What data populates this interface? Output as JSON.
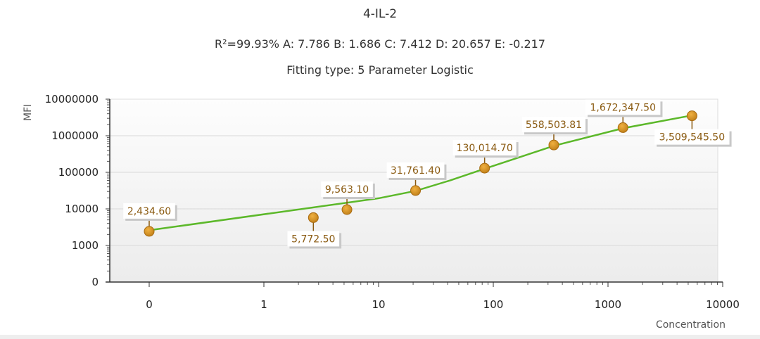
{
  "chart_data": {
    "type": "scatter",
    "title": "4-IL-2",
    "subtitle": "R²=99.93% A: 7.786 B: 1.686 C: 7.412 D: 20.657 E: -0.217",
    "fitting": "Fitting type: 5 Parameter Logistic",
    "xlabel": "Concentration",
    "ylabel": "MFI",
    "xscale": "log",
    "yscale": "log",
    "x_ticks": [
      "0",
      "1",
      "10",
      "100",
      "1000",
      "10000"
    ],
    "y_ticks": [
      "10000000",
      "1000000",
      "100000",
      "10000",
      "1000",
      "0"
    ],
    "grid": true,
    "points": [
      {
        "x": 0,
        "y": 2434.6,
        "label": "2,434.60",
        "placement": "above"
      },
      {
        "x": 2.7,
        "y": 5772.5,
        "label": "5,772.50",
        "placement": "below"
      },
      {
        "x": 5.3,
        "y": 9563.1,
        "label": "9,563.10",
        "placement": "above"
      },
      {
        "x": 21,
        "y": 31761.4,
        "label": "31,761.40",
        "placement": "above"
      },
      {
        "x": 84,
        "y": 130014.7,
        "label": "130,014.70",
        "placement": "above"
      },
      {
        "x": 337,
        "y": 558503.81,
        "label": "558,503.81",
        "placement": "above"
      },
      {
        "x": 1350,
        "y": 1672347.5,
        "label": "1,672,347.50",
        "placement": "above"
      },
      {
        "x": 5400,
        "y": 3509545.5,
        "label": "3,509,545.50",
        "placement": "below"
      }
    ],
    "fit_curve": [
      [
        0,
        2600
      ],
      [
        10,
        19500
      ],
      [
        21,
        31000
      ],
      [
        42,
        60000
      ],
      [
        84,
        125000
      ],
      [
        170,
        260000
      ],
      [
        337,
        530000
      ],
      [
        1350,
        1600000
      ],
      [
        5400,
        3600000
      ]
    ],
    "colors": {
      "curve": "#5cb82a",
      "point": "#d4901e",
      "point_stroke": "#a86a10",
      "label_text": "#8a5a10"
    }
  }
}
